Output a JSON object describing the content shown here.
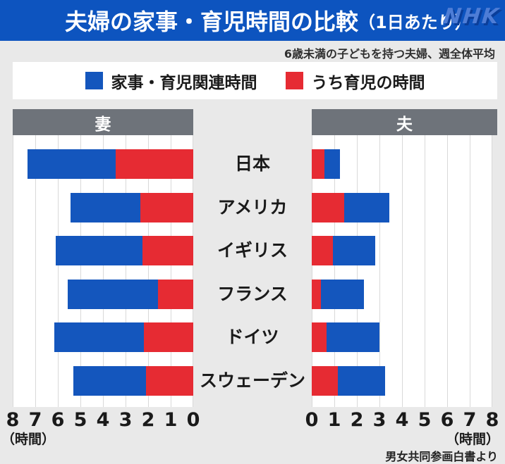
{
  "header": {
    "title": "夫婦の家事・育児時間の比較",
    "title_paren": "（1日あたり）",
    "logo_text": "NHK"
  },
  "subtitle": "6歳未満の子どもを持つ夫婦、週全体平均",
  "legend": {
    "items": [
      {
        "label": "家事・育児関連時間",
        "color": "#1456BD"
      },
      {
        "label": "うち育児の時間",
        "color": "#E62B33"
      }
    ]
  },
  "panel_headers": {
    "wife": "妻",
    "husband": "夫"
  },
  "axis": {
    "wife_ticks": [
      "8",
      "7",
      "6",
      "5",
      "4",
      "3",
      "2",
      "1",
      "0"
    ],
    "husband_ticks": [
      "0",
      "1",
      "2",
      "3",
      "4",
      "5",
      "6",
      "7",
      "8"
    ],
    "unit_label": "（時間）"
  },
  "source": "男女共同参画白書より",
  "colors": {
    "title_bar": "#0D54BF",
    "bar_total": "#1456BD",
    "bar_childcare": "#E62B33",
    "panel_header_bg": "#6E737A",
    "page_bg": "#E9E9E9",
    "gridline": "#D9D9D9"
  },
  "chart_data": {
    "type": "bar",
    "title": "夫婦の家事・育児時間の比較（1日あたり）",
    "subtitle": "6歳未満の子どもを持つ夫婦、週全体平均",
    "unit": "hours per day (時間)",
    "xlim": [
      0,
      8
    ],
    "grid": true,
    "legend_position": "top",
    "categories": [
      "日本",
      "アメリカ",
      "イギリス",
      "フランス",
      "ドイツ",
      "スウェーデン"
    ],
    "panels": [
      {
        "group": "妻",
        "axis_direction": "right-to-left",
        "series": [
          {
            "name": "家事・育児関連時間",
            "color": "#1456BD",
            "values": [
              7.35,
              5.45,
              6.1,
              5.55,
              6.15,
              5.3
            ]
          },
          {
            "name": "うち育児の時間",
            "color": "#E62B33",
            "values": [
              3.45,
              2.35,
              2.25,
              1.55,
              2.2,
              2.1
            ]
          }
        ]
      },
      {
        "group": "夫",
        "axis_direction": "left-to-right",
        "series": [
          {
            "name": "家事・育児関連時間",
            "color": "#1456BD",
            "values": [
              1.25,
              3.45,
              2.8,
              2.3,
              3.0,
              3.25
            ]
          },
          {
            "name": "うち育児の時間",
            "color": "#E62B33",
            "values": [
              0.55,
              1.45,
              0.95,
              0.4,
              0.65,
              1.15
            ]
          }
        ]
      }
    ],
    "source": "男女共同参画白書より"
  }
}
